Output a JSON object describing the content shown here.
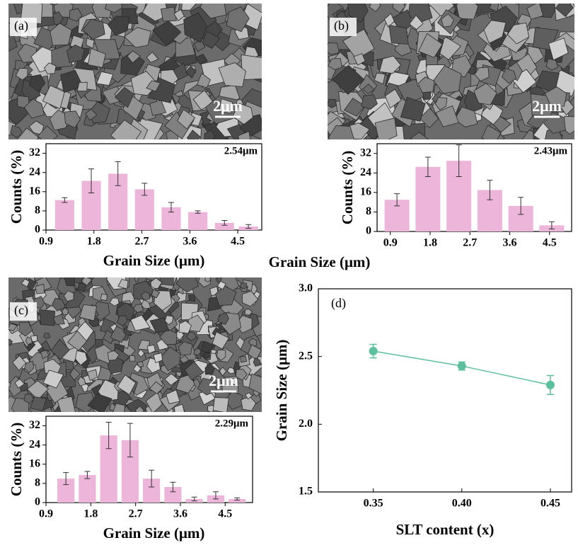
{
  "chart_data": [
    {
      "type": "bar",
      "panel_label": "(a)",
      "scale_bar": "2μm",
      "annotation": "2.54μm",
      "xlabel": "Grain Size (μm)",
      "ylabel": "Counts (%)",
      "color": "#eeb5da",
      "x": [
        1.25,
        1.75,
        2.25,
        2.75,
        3.25,
        3.75,
        4.25,
        4.7
      ],
      "values": [
        12.5,
        20.5,
        23.5,
        17,
        9.5,
        7.5,
        3,
        1.5
      ],
      "errors": [
        1,
        5,
        5,
        2.5,
        2,
        0.5,
        1,
        0.8
      ],
      "xlim": [
        0.9,
        4.95
      ],
      "xticks": [
        0.9,
        1.8,
        2.7,
        3.6,
        4.5
      ],
      "ylim": [
        0,
        36
      ],
      "yticks": [
        0,
        8,
        16,
        24,
        32
      ]
    },
    {
      "type": "bar",
      "panel_label": "(b)",
      "scale_bar": "2μm",
      "annotation": "2.43μm",
      "xlabel": "Grain Size (μm)",
      "ylabel": "Counts (%)",
      "color": "#eeb5da",
      "x": [
        1.05,
        1.75,
        2.45,
        3.15,
        3.85,
        4.55
      ],
      "values": [
        13,
        26.5,
        29,
        17,
        10.5,
        2.5
      ],
      "errors": [
        2.5,
        4,
        6.5,
        4,
        3.5,
        1.5
      ],
      "xlim": [
        0.6,
        5.0
      ],
      "xticks": [
        0.9,
        1.8,
        2.7,
        3.6,
        4.5
      ],
      "ylim": [
        0,
        36
      ],
      "yticks": [
        0,
        8,
        16,
        24,
        32
      ]
    },
    {
      "type": "bar",
      "panel_label": "(c)",
      "scale_bar": "2μm",
      "annotation": "2.29μm",
      "xlabel": "Grain Size (μm)",
      "ylabel": "Counts (%)",
      "color": "#eeb5da",
      "x": [
        1.3,
        1.73,
        2.16,
        2.59,
        3.02,
        3.45,
        3.88,
        4.31,
        4.74
      ],
      "values": [
        10,
        11.5,
        28,
        26,
        10,
        6.5,
        1.5,
        3,
        1.5
      ],
      "errors": [
        2.5,
        1.5,
        5.5,
        7,
        3.5,
        2,
        0.8,
        1.5,
        0.5
      ],
      "xlim": [
        0.9,
        5.05
      ],
      "xticks": [
        0.9,
        1.8,
        2.7,
        3.6,
        4.5
      ],
      "ylim": [
        0,
        36
      ],
      "yticks": [
        0,
        8,
        16,
        24,
        32
      ]
    },
    {
      "type": "scatter",
      "panel_label": "(d)",
      "line": true,
      "xlabel": "SLT content (x)",
      "ylabel": "Grain Size (μm)",
      "color": "#5cbf9e",
      "x": [
        0.35,
        0.4,
        0.45
      ],
      "values": [
        2.54,
        2.43,
        2.29
      ],
      "errors": [
        0.05,
        0.03,
        0.07
      ],
      "xlim": [
        0.319,
        0.462
      ],
      "xticks": [
        0.35,
        {
          "value": 0.4,
          "label": "0.40"
        },
        0.45
      ],
      "ylim": [
        1.5,
        3.0
      ],
      "yticks": [
        {
          "value": 1.5,
          "label": "1.5"
        },
        {
          "value": 2.0,
          "label": "2.0"
        },
        {
          "value": 2.5,
          "label": "2.5"
        },
        {
          "value": 3.0,
          "label": "3.0"
        }
      ]
    }
  ]
}
